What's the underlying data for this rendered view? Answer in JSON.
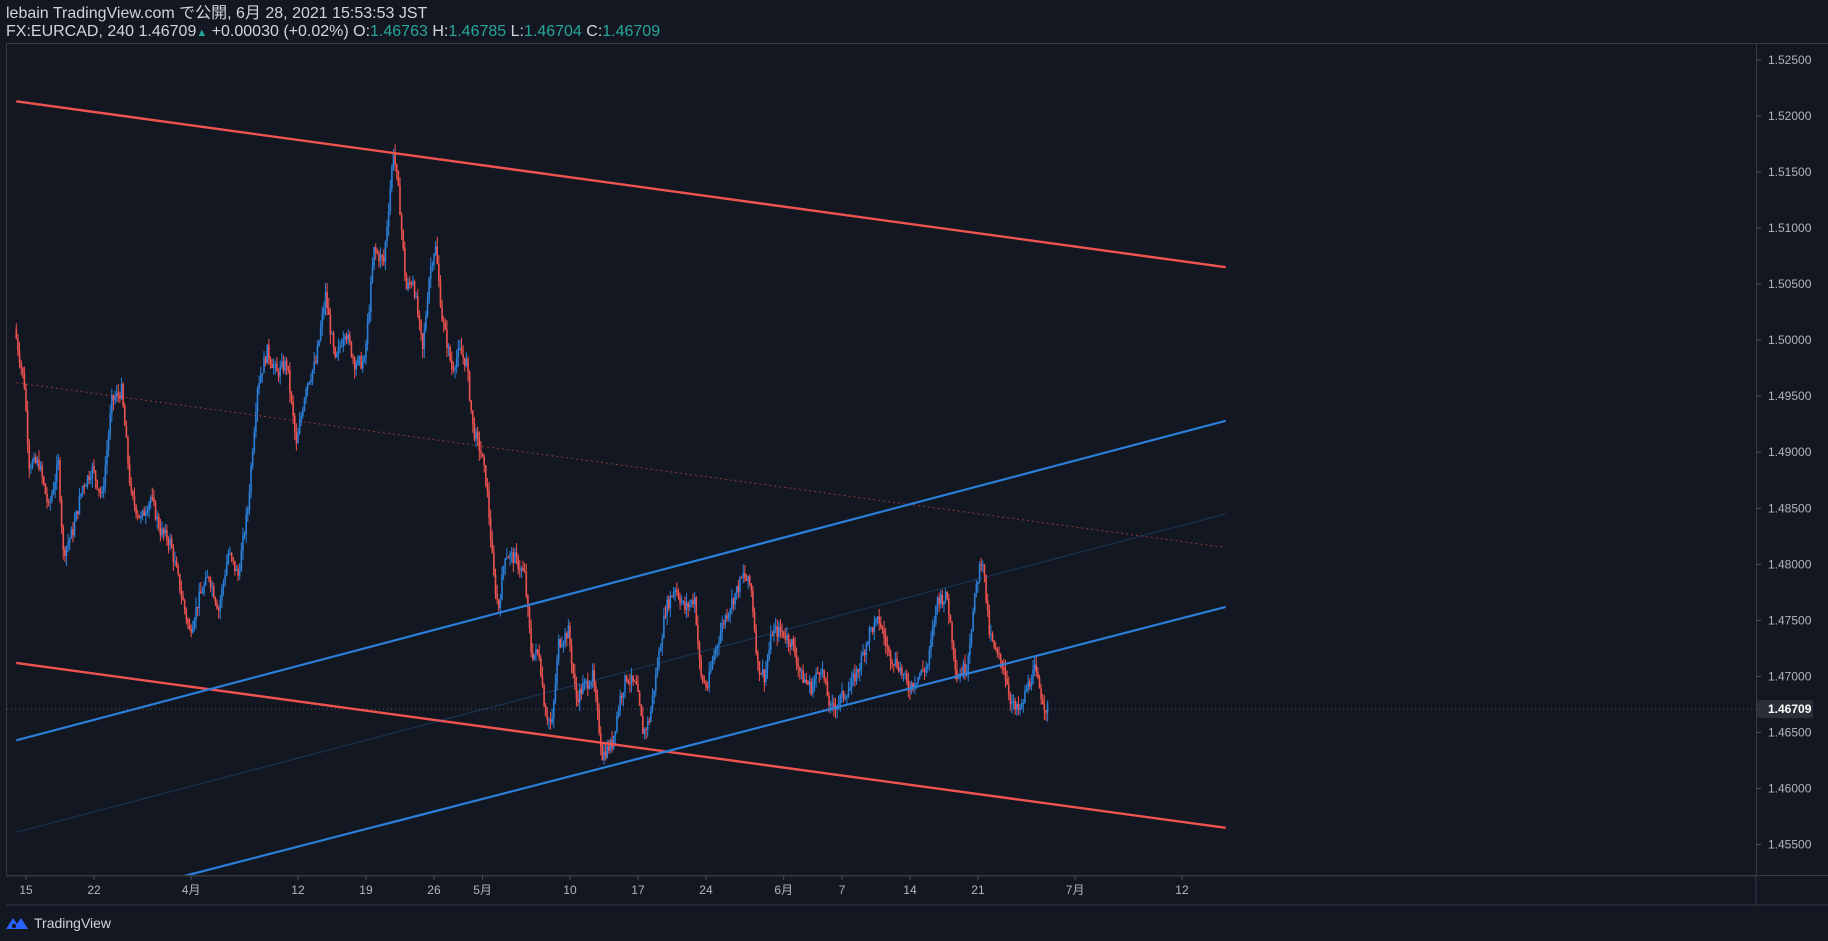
{
  "header": {
    "line1": "lebain TradingView.com で公開, 6月 28, 2021 15:53:53 JST",
    "symbol": "FX:EURCAD, 240",
    "last": "1.46709",
    "change_arrow": "▲",
    "change": "+0.00030 (+0.02%)",
    "o_label": "O:",
    "o_value": "1.46763",
    "h_label": "H:",
    "h_value": "1.46785",
    "l_label": "L:",
    "l_value": "1.46704",
    "c_label": "C:",
    "c_value": "1.46709"
  },
  "footer": {
    "brand": "TradingView"
  },
  "colors": {
    "up": "#2a7fd9",
    "down": "#ef5350",
    "bg": "#131722",
    "axis_text": "#b2b5be",
    "grid_border": "#363a45"
  },
  "chart_data": {
    "type": "candlestick",
    "symbol": "FX:EURCAD",
    "interval": "240",
    "ylim": [
      1.4522,
      1.5265
    ],
    "y_ticks": [
      "1.45500",
      "1.46000",
      "1.46500",
      "1.47000",
      "1.47500",
      "1.48000",
      "1.48500",
      "1.49000",
      "1.49500",
      "1.50000",
      "1.50500",
      "1.51000",
      "1.51500",
      "1.52000",
      "1.52500"
    ],
    "last_price_label": "1.46709",
    "x_ticks": [
      {
        "label": "15",
        "day": 0
      },
      {
        "label": "22",
        "day": 7
      },
      {
        "label": "4月",
        "day": 17
      },
      {
        "label": "12",
        "day": 28
      },
      {
        "label": "19",
        "day": 35
      },
      {
        "label": "26",
        "day": 42
      },
      {
        "label": "5月",
        "day": 47
      },
      {
        "label": "10",
        "day": 56
      },
      {
        "label": "17",
        "day": 63
      },
      {
        "label": "24",
        "day": 70
      },
      {
        "label": "6月",
        "day": 78
      },
      {
        "label": "7",
        "day": 84
      },
      {
        "label": "14",
        "day": 91
      },
      {
        "label": "21",
        "day": 98
      },
      {
        "label": "7月",
        "day": 108
      },
      {
        "label": "12",
        "day": 119
      }
    ],
    "price_path": [
      [
        -1.0,
        1.501
      ],
      [
        0.0,
        1.496
      ],
      [
        0.5,
        1.489
      ],
      [
        1.5,
        1.489
      ],
      [
        2.5,
        1.485
      ],
      [
        3.5,
        1.489
      ],
      [
        4.0,
        1.481
      ],
      [
        5.0,
        1.483
      ],
      [
        6.0,
        1.487
      ],
      [
        7.0,
        1.4885
      ],
      [
        8.0,
        1.486
      ],
      [
        9.0,
        1.4945
      ],
      [
        10.0,
        1.4955
      ],
      [
        11.0,
        1.486
      ],
      [
        12.0,
        1.484
      ],
      [
        13.0,
        1.486
      ],
      [
        14.0,
        1.483
      ],
      [
        15.0,
        1.482
      ],
      [
        16.0,
        1.478
      ],
      [
        17.0,
        1.474
      ],
      [
        18.0,
        1.477
      ],
      [
        19.0,
        1.479
      ],
      [
        20.0,
        1.476
      ],
      [
        21.0,
        1.481
      ],
      [
        22.0,
        1.479
      ],
      [
        23.0,
        1.485
      ],
      [
        24.0,
        1.496
      ],
      [
        25.0,
        1.499
      ],
      [
        26.0,
        1.497
      ],
      [
        27.0,
        1.498
      ],
      [
        28.0,
        1.4905
      ],
      [
        29.0,
        1.496
      ],
      [
        30.0,
        1.498
      ],
      [
        31.0,
        1.504
      ],
      [
        32.0,
        1.498
      ],
      [
        33.0,
        1.501
      ],
      [
        34.0,
        1.498
      ],
      [
        35.0,
        1.498
      ],
      [
        36.0,
        1.508
      ],
      [
        37.0,
        1.507
      ],
      [
        38.0,
        1.517
      ],
      [
        38.6,
        1.5125
      ],
      [
        39.3,
        1.5045
      ],
      [
        40.0,
        1.5055
      ],
      [
        41.0,
        1.499
      ],
      [
        41.7,
        1.506
      ],
      [
        42.3,
        1.5085
      ],
      [
        43.0,
        1.502
      ],
      [
        44.0,
        1.4975
      ],
      [
        44.8,
        1.499
      ],
      [
        45.5,
        1.498
      ],
      [
        46.2,
        1.492
      ],
      [
        47.0,
        1.49
      ],
      [
        47.6,
        1.487
      ],
      [
        48.3,
        1.479
      ],
      [
        48.8,
        1.476
      ],
      [
        49.5,
        1.481
      ],
      [
        50.5,
        1.4805
      ],
      [
        51.5,
        1.479
      ],
      [
        52.2,
        1.472
      ],
      [
        53.0,
        1.472
      ],
      [
        53.6,
        1.467
      ],
      [
        54.3,
        1.4655
      ],
      [
        55.0,
        1.473
      ],
      [
        56.0,
        1.474
      ],
      [
        56.8,
        1.468
      ],
      [
        57.5,
        1.469
      ],
      [
        58.5,
        1.47
      ],
      [
        59.5,
        1.463
      ],
      [
        60.5,
        1.464
      ],
      [
        61.3,
        1.468
      ],
      [
        62.0,
        1.47
      ],
      [
        63.0,
        1.469
      ],
      [
        63.7,
        1.465
      ],
      [
        64.3,
        1.466
      ],
      [
        65.0,
        1.47
      ],
      [
        66.0,
        1.476
      ],
      [
        67.0,
        1.478
      ],
      [
        68.0,
        1.476
      ],
      [
        69.0,
        1.477
      ],
      [
        69.6,
        1.47
      ],
      [
        70.3,
        1.469
      ],
      [
        71.0,
        1.472
      ],
      [
        72.0,
        1.475
      ],
      [
        73.0,
        1.477
      ],
      [
        74.0,
        1.479
      ],
      [
        74.8,
        1.478
      ],
      [
        75.5,
        1.471
      ],
      [
        76.2,
        1.47
      ],
      [
        77.0,
        1.474
      ],
      [
        78.0,
        1.474
      ],
      [
        79.0,
        1.473
      ],
      [
        80.0,
        1.47
      ],
      [
        81.0,
        1.469
      ],
      [
        82.0,
        1.471
      ],
      [
        83.0,
        1.467
      ],
      [
        84.0,
        1.468
      ],
      [
        85.0,
        1.469
      ],
      [
        86.0,
        1.471
      ],
      [
        87.0,
        1.474
      ],
      [
        88.0,
        1.475
      ],
      [
        89.0,
        1.472
      ],
      [
        90.0,
        1.471
      ],
      [
        91.0,
        1.469
      ],
      [
        92.0,
        1.47
      ],
      [
        93.0,
        1.471
      ],
      [
        94.0,
        1.477
      ],
      [
        95.0,
        1.477
      ],
      [
        96.0,
        1.47
      ],
      [
        97.0,
        1.471
      ],
      [
        98.0,
        1.478
      ],
      [
        98.6,
        1.481
      ],
      [
        99.3,
        1.474
      ],
      [
        100.0,
        1.472
      ],
      [
        100.8,
        1.471
      ],
      [
        101.5,
        1.468
      ],
      [
        102.0,
        1.467
      ],
      [
        102.6,
        1.467
      ],
      [
        103.2,
        1.469
      ],
      [
        104.0,
        1.4705
      ],
      [
        104.8,
        1.468
      ],
      [
        105.2,
        1.4671
      ]
    ],
    "trendlines": [
      {
        "name": "red-channel-upper",
        "color": "#ef5350",
        "width": 2.4,
        "points": [
          [
            -1.0,
            1.5213
          ],
          [
            123.5,
            1.5065
          ]
        ]
      },
      {
        "name": "red-channel-lower",
        "color": "#ef5350",
        "width": 2.4,
        "points": [
          [
            -1.0,
            1.4712
          ],
          [
            123.5,
            1.4565
          ]
        ]
      },
      {
        "name": "red-channel-mid",
        "color": "#ef5350",
        "width": 1,
        "dashed": true,
        "opacity": 0.55,
        "points": [
          [
            -1.0,
            1.4962
          ],
          [
            123.5,
            1.4815
          ]
        ]
      },
      {
        "name": "blue-channel-upper",
        "color": "#2a7fd9",
        "width": 2.2,
        "points": [
          [
            -1.0,
            1.4643
          ],
          [
            123.5,
            1.4928
          ]
        ]
      },
      {
        "name": "blue-channel-lower",
        "color": "#2a7fd9",
        "width": 2.2,
        "points": [
          [
            16.3,
            1.4522
          ],
          [
            123.5,
            1.4762
          ]
        ]
      },
      {
        "name": "blue-channel-mid",
        "color": "#2a7fd9",
        "width": 1,
        "opacity": 0.3,
        "points": [
          [
            -1.0,
            1.4561
          ],
          [
            123.5,
            1.4845
          ]
        ]
      }
    ],
    "current_price_line": {
      "value": 1.46709
    }
  }
}
